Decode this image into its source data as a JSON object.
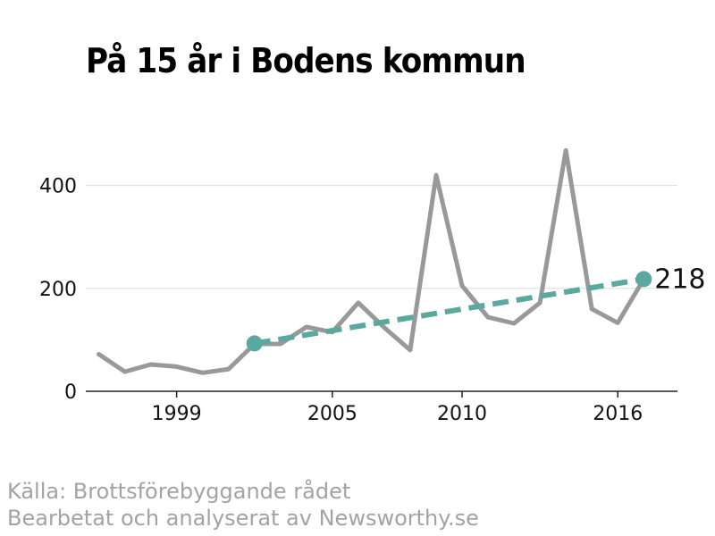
{
  "chart_data": {
    "type": "line",
    "title": "På 15 år i Bodens kommun",
    "x_ticks": [
      "1999",
      "2005",
      "2010",
      "2016"
    ],
    "y_ticks": [
      "0",
      "200",
      "400"
    ],
    "xlim": [
      1995.5,
      2018.3
    ],
    "ylim": [
      0,
      500
    ],
    "grid": true,
    "series": [
      {
        "color": "#999999",
        "x": [
          1996,
          1997,
          1998,
          1999,
          2000,
          2001,
          2002,
          2003,
          2004,
          2005,
          2006,
          2007,
          2008,
          2009,
          2010,
          2011,
          2012,
          2013,
          2014,
          2015,
          2016,
          2017
        ],
        "values": [
          72,
          38,
          52,
          48,
          36,
          43,
          92,
          92,
          125,
          115,
          172,
          124,
          80,
          420,
          205,
          144,
          132,
          172,
          468,
          160,
          133,
          218
        ]
      }
    ],
    "trend": {
      "color": "#5ba89e",
      "x": [
        2002,
        2017
      ],
      "values": [
        93,
        218
      ]
    },
    "end_label": "218"
  },
  "source": {
    "line1": "Källa: Brottsförebyggande rådet",
    "line2": "Bearbetat och analyserat av Newsworthy.se"
  }
}
